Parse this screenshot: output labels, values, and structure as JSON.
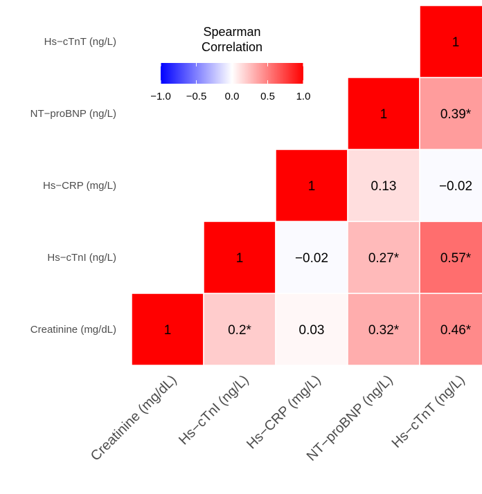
{
  "chart_data": {
    "type": "heatmap",
    "title": "",
    "variables": [
      "Creatinine (mg/dL)",
      "Hs−cTnI (ng/L)",
      "Hs−CRP (mg/L)",
      "NT−proBNP (ng/L)",
      "Hs−cTnT (ng/L)"
    ],
    "x_labels": [
      "Creatinine (mg/dL)",
      "Hs−cTnI (ng/L)",
      "Hs−CRP (mg/L)",
      "NT−proBNP (ng/L)",
      "Hs−cTnT (ng/L)"
    ],
    "y_labels": [
      "Creatinine (mg/dL)",
      "Hs−cTnI (ng/L)",
      "Hs−CRP (mg/L)",
      "NT−proBNP (ng/L)",
      "Hs−cTnT (ng/L)"
    ],
    "cells": [
      {
        "x": "Creatinine (mg/dL)",
        "y": "Creatinine (mg/dL)",
        "value": 1,
        "label": "1"
      },
      {
        "x": "Hs−cTnI (ng/L)",
        "y": "Creatinine (mg/dL)",
        "value": 0.2,
        "label": "0.2*"
      },
      {
        "x": "Hs−CRP (mg/L)",
        "y": "Creatinine (mg/dL)",
        "value": 0.03,
        "label": "0.03"
      },
      {
        "x": "NT−proBNP (ng/L)",
        "y": "Creatinine (mg/dL)",
        "value": 0.32,
        "label": "0.32*"
      },
      {
        "x": "Hs−cTnT (ng/L)",
        "y": "Creatinine (mg/dL)",
        "value": 0.46,
        "label": "0.46*"
      },
      {
        "x": "Hs−cTnI (ng/L)",
        "y": "Hs−cTnI (ng/L)",
        "value": 1,
        "label": "1"
      },
      {
        "x": "Hs−CRP (mg/L)",
        "y": "Hs−cTnI (ng/L)",
        "value": -0.02,
        "label": "−0.02"
      },
      {
        "x": "NT−proBNP (ng/L)",
        "y": "Hs−cTnI (ng/L)",
        "value": 0.27,
        "label": "0.27*"
      },
      {
        "x": "Hs−cTnT (ng/L)",
        "y": "Hs−cTnI (ng/L)",
        "value": 0.57,
        "label": "0.57*"
      },
      {
        "x": "Hs−CRP (mg/L)",
        "y": "Hs−CRP (mg/L)",
        "value": 1,
        "label": "1"
      },
      {
        "x": "NT−proBNP (ng/L)",
        "y": "Hs−CRP (mg/L)",
        "value": 0.13,
        "label": "0.13"
      },
      {
        "x": "Hs−cTnT (ng/L)",
        "y": "Hs−CRP (mg/L)",
        "value": -0.02,
        "label": "−0.02"
      },
      {
        "x": "NT−proBNP (ng/L)",
        "y": "NT−proBNP (ng/L)",
        "value": 1,
        "label": "1"
      },
      {
        "x": "Hs−cTnT (ng/L)",
        "y": "NT−proBNP (ng/L)",
        "value": 0.39,
        "label": "0.39*"
      },
      {
        "x": "Hs−cTnT (ng/L)",
        "y": "Hs−cTnT (ng/L)",
        "value": 1,
        "label": "1"
      }
    ],
    "legend": {
      "title_lines": [
        "Spearman",
        "Correlation"
      ],
      "ticks": [
        -1.0,
        -0.5,
        0.0,
        0.5,
        1.0
      ],
      "tick_labels": [
        "−1.0",
        "−0.5",
        "0.0",
        "0.5",
        "1.0"
      ],
      "range": [
        -1,
        1
      ],
      "low_color": "#0000ff",
      "mid_color": "#ffffff",
      "high_color": "#ff0000",
      "placement": "top-left"
    },
    "colors": {
      "low": "#0000ff",
      "mid": "#ffffff",
      "high": "#ff0000",
      "cell_border": "#ffffff"
    }
  }
}
